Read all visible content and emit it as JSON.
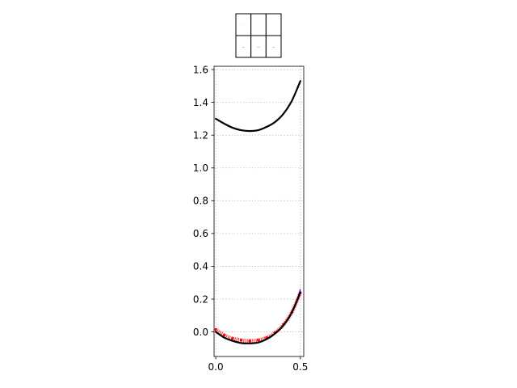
{
  "chart_data": [
    {
      "type": "table",
      "rows": 2,
      "cols": 3,
      "cells": [
        [
          "·",
          "",
          ""
        ],
        [
          "—",
          "—",
          "—"
        ]
      ]
    },
    {
      "type": "line",
      "title": "",
      "xlabel": "",
      "ylabel": "",
      "xlim": [
        -0.01,
        0.52
      ],
      "ylim": [
        -0.15,
        1.62
      ],
      "grid": true,
      "xticks": [
        0.0,
        0.5
      ],
      "xtick_labels": [
        "0.0",
        "0.5"
      ],
      "yticks": [
        0.0,
        0.2,
        0.4,
        0.6,
        0.8,
        1.0,
        1.2,
        1.4,
        1.6
      ],
      "ytick_labels": [
        "0.0",
        "0.2",
        "0.4",
        "0.6",
        "0.8",
        "1.0",
        "1.2",
        "1.4",
        "1.6"
      ],
      "colors": {
        "primary": "#000000",
        "accent": "#ff0000",
        "edge": "#0000ff"
      },
      "series": [
        {
          "style": "solid-black",
          "x": [
            0.0,
            0.05,
            0.1,
            0.15,
            0.2,
            0.25,
            0.3,
            0.35,
            0.4,
            0.45,
            0.5
          ],
          "y": [
            1.3,
            1.27,
            1.245,
            1.23,
            1.225,
            1.23,
            1.25,
            1.28,
            1.33,
            1.41,
            1.53
          ]
        },
        {
          "style": "solid-black",
          "x": [
            0.0,
            0.05,
            0.1,
            0.15,
            0.2,
            0.25,
            0.3,
            0.35,
            0.4,
            0.45,
            0.5
          ],
          "y": [
            0.0,
            -0.035,
            -0.055,
            -0.068,
            -0.07,
            -0.065,
            -0.045,
            -0.01,
            0.04,
            0.12,
            0.24
          ]
        },
        {
          "style": "red-markers",
          "x": [
            0.0,
            0.05,
            0.1,
            0.15,
            0.2,
            0.25,
            0.3,
            0.35,
            0.4,
            0.45,
            0.5
          ],
          "y": [
            0.015,
            -0.02,
            -0.04,
            -0.05,
            -0.055,
            -0.05,
            -0.035,
            -0.005,
            0.045,
            0.12,
            0.24
          ]
        },
        {
          "style": "blue-edge",
          "x": [
            0.47,
            0.5
          ],
          "y": [
            0.16,
            0.26
          ]
        }
      ]
    }
  ]
}
